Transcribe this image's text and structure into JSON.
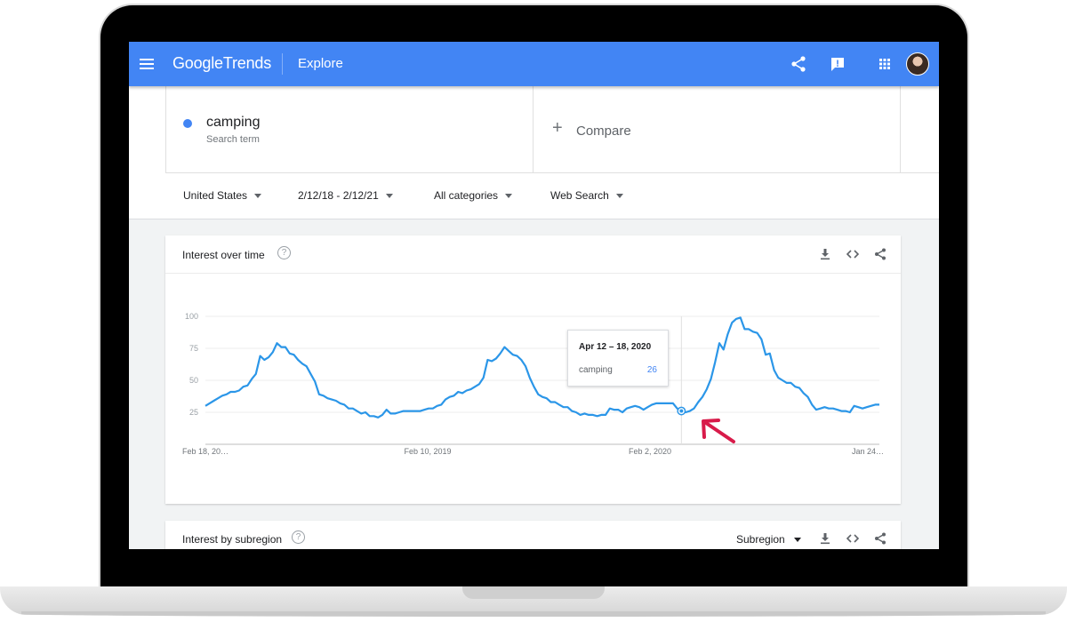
{
  "header": {
    "logo_google": "Google",
    "logo_trends": "Trends",
    "section": "Explore"
  },
  "search": {
    "term": "camping",
    "term_sub": "Search term",
    "compare_plus": "+",
    "compare_label": "Compare",
    "term_color": "#4285f4"
  },
  "filters": {
    "region": "United States",
    "date_range": "2/12/18 - 2/12/21",
    "category": "All categories",
    "search_type": "Web Search"
  },
  "interest_card": {
    "title": "Interest over time",
    "help": "?"
  },
  "tooltip": {
    "date": "Apr 12 – 18, 2020",
    "term": "camping",
    "value": "26"
  },
  "subregion_card": {
    "title": "Interest by subregion",
    "help": "?",
    "select_label": "Subregion"
  },
  "colors": {
    "topbar": "#4285f4",
    "series": "#2b96e8",
    "annotation_arrow": "#d81b4a"
  },
  "chart_data": {
    "type": "line",
    "ylim": [
      0,
      100
    ],
    "y_ticks": [
      25,
      50,
      75,
      100
    ],
    "x_tick_labels": [
      "Feb 18, 20…",
      "Feb 10, 2019",
      "Feb 2, 2020",
      "Jan 24…"
    ],
    "grid": true,
    "highlight_index": 113,
    "series": [
      {
        "name": "camping",
        "values": [
          30,
          32,
          34,
          36,
          38,
          39,
          41,
          41,
          42,
          45,
          46,
          51,
          55,
          69,
          66,
          68,
          72,
          79,
          76,
          76,
          71,
          70,
          66,
          63,
          61,
          55,
          49,
          39,
          38,
          36,
          35,
          34,
          32,
          31,
          28,
          28,
          26,
          24,
          25,
          22,
          22,
          21,
          23,
          27,
          24,
          24,
          25,
          26,
          26,
          26,
          26,
          26,
          27,
          28,
          28,
          30,
          31,
          35,
          37,
          38,
          41,
          40,
          42,
          43,
          45,
          47,
          52,
          66,
          65,
          67,
          71,
          76,
          73,
          70,
          69,
          66,
          61,
          52,
          45,
          39,
          37,
          36,
          33,
          33,
          31,
          29,
          29,
          26,
          25,
          23,
          24,
          23,
          23,
          22,
          23,
          23,
          28,
          27,
          27,
          25,
          28,
          29,
          30,
          29,
          27,
          29,
          31,
          32,
          32,
          32,
          32,
          32,
          28,
          26,
          25,
          26,
          28,
          33,
          37,
          43,
          51,
          64,
          79,
          74,
          86,
          95,
          98,
          99,
          90,
          90,
          88,
          87,
          82,
          70,
          71,
          58,
          52,
          50,
          48,
          48,
          45,
          44,
          40,
          37,
          31,
          27,
          28,
          29,
          28,
          28,
          27,
          26,
          26,
          25,
          30,
          29,
          28,
          29,
          30,
          31,
          31
        ]
      }
    ]
  }
}
